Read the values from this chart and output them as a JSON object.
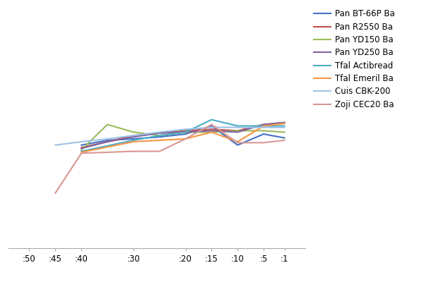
{
  "background_color": "#FFFFFF",
  "grid_color": "#D9D9D9",
  "legend_fontsize": 8.5,
  "tick_fontsize": 8.5,
  "ylim": [
    0,
    500
  ],
  "xlim_left": 54,
  "xlim_right": -3,
  "x_ticks": [
    50,
    45,
    40,
    30,
    20,
    15,
    10,
    5,
    1
  ],
  "x_tick_labels": [
    ":50",
    ":45",
    ":40",
    ":30",
    ":20",
    ":15",
    ":10",
    ":5",
    ":1"
  ],
  "series": [
    {
      "name": "Pan BT-66P Ba",
      "color": "#4472C4",
      "pts": [
        [
          40,
          215
        ],
        [
          35,
          225
        ],
        [
          30,
          228
        ],
        [
          25,
          232
        ],
        [
          20,
          238
        ],
        [
          15,
          255
        ],
        [
          10,
          215
        ],
        [
          5,
          238
        ],
        [
          1,
          230
        ]
      ]
    },
    {
      "name": "Pan R2550 Ba",
      "color": "#C0504D",
      "pts": [
        [
          40,
          210
        ],
        [
          35,
          222
        ],
        [
          30,
          235
        ],
        [
          25,
          240
        ],
        [
          20,
          245
        ],
        [
          15,
          248
        ],
        [
          10,
          245
        ],
        [
          5,
          258
        ],
        [
          1,
          262
        ]
      ]
    },
    {
      "name": "Pan YD150 Ba",
      "color": "#9BBB59",
      "pts": [
        [
          40,
          205
        ],
        [
          35,
          258
        ],
        [
          30,
          242
        ],
        [
          25,
          235
        ],
        [
          20,
          242
        ],
        [
          15,
          242
        ],
        [
          10,
          245
        ],
        [
          5,
          245
        ],
        [
          1,
          242
        ]
      ]
    },
    {
      "name": "Pan YD250 Ba",
      "color": "#8064A2",
      "pts": [
        [
          40,
          208
        ],
        [
          35,
          222
        ],
        [
          30,
          232
        ],
        [
          25,
          240
        ],
        [
          20,
          242
        ],
        [
          15,
          245
        ],
        [
          10,
          242
        ],
        [
          5,
          258
        ],
        [
          1,
          262
        ]
      ]
    },
    {
      "name": "Tfal Actibread",
      "color": "#4BACC6",
      "pts": [
        [
          40,
          202
        ],
        [
          30,
          225
        ],
        [
          25,
          235
        ],
        [
          20,
          242
        ],
        [
          15,
          268
        ],
        [
          10,
          255
        ],
        [
          5,
          255
        ],
        [
          1,
          255
        ]
      ]
    },
    {
      "name": "Tfal Emeril Ba",
      "color": "#F79646",
      "pts": [
        [
          40,
          200
        ],
        [
          30,
          222
        ],
        [
          25,
          225
        ],
        [
          20,
          228
        ],
        [
          15,
          242
        ],
        [
          10,
          222
        ],
        [
          5,
          255
        ],
        [
          1,
          260
        ]
      ]
    },
    {
      "name": "Cuis CBK-200",
      "color": "#9DC3E6",
      "pts": [
        [
          45,
          215
        ],
        [
          40,
          222
        ],
        [
          35,
          228
        ],
        [
          30,
          235
        ],
        [
          25,
          242
        ],
        [
          20,
          248
        ],
        [
          15,
          252
        ],
        [
          10,
          252
        ],
        [
          5,
          252
        ],
        [
          1,
          252
        ]
      ]
    },
    {
      "name": "Zoji CEC20 Ba",
      "color": "#D99694",
      "pts": [
        [
          45,
          115
        ],
        [
          40,
          198
        ],
        [
          30,
          202
        ],
        [
          25,
          202
        ],
        [
          20,
          228
        ],
        [
          15,
          258
        ],
        [
          10,
          220
        ],
        [
          5,
          220
        ],
        [
          1,
          225
        ]
      ]
    }
  ]
}
